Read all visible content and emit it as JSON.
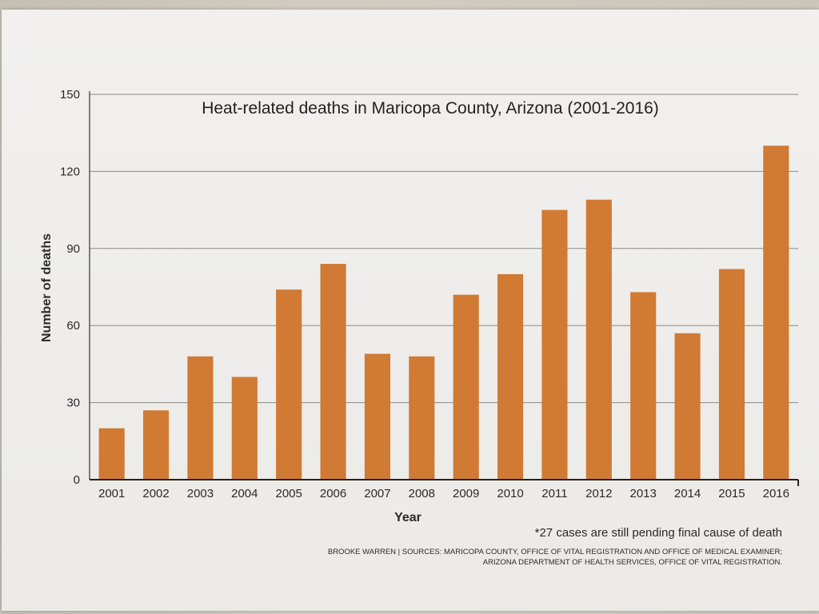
{
  "chart_data": {
    "type": "bar",
    "title": "Heat-related deaths in Maricopa County, Arizona (2001-2016)",
    "xlabel": "Year",
    "ylabel": "Number of deaths",
    "categories": [
      "2001",
      "2002",
      "2003",
      "2004",
      "2005",
      "2006",
      "2007",
      "2008",
      "2009",
      "2010",
      "2011",
      "2012",
      "2013",
      "2014",
      "2015",
      "2016"
    ],
    "values": [
      20,
      27,
      48,
      40,
      74,
      84,
      49,
      48,
      72,
      80,
      105,
      109,
      73,
      57,
      82,
      130
    ],
    "ylim": [
      0,
      150
    ],
    "yticks": [
      "0",
      "30",
      "60",
      "90",
      "120",
      "150"
    ],
    "grid": true,
    "bar_color": "#d07a34",
    "legend": "none"
  },
  "footnote": "*27 cases are still pending final cause of death",
  "source_line1": "BROOKE WARREN | SOURCES: MARICOPA COUNTY, OFFICE OF VITAL REGISTRATION AND OFFICE OF MEDICAL EXAMINER;",
  "source_line2": "ARIZONA DEPARTMENT OF HEALTH SERVICES, OFFICE OF VITAL REGISTRATION."
}
